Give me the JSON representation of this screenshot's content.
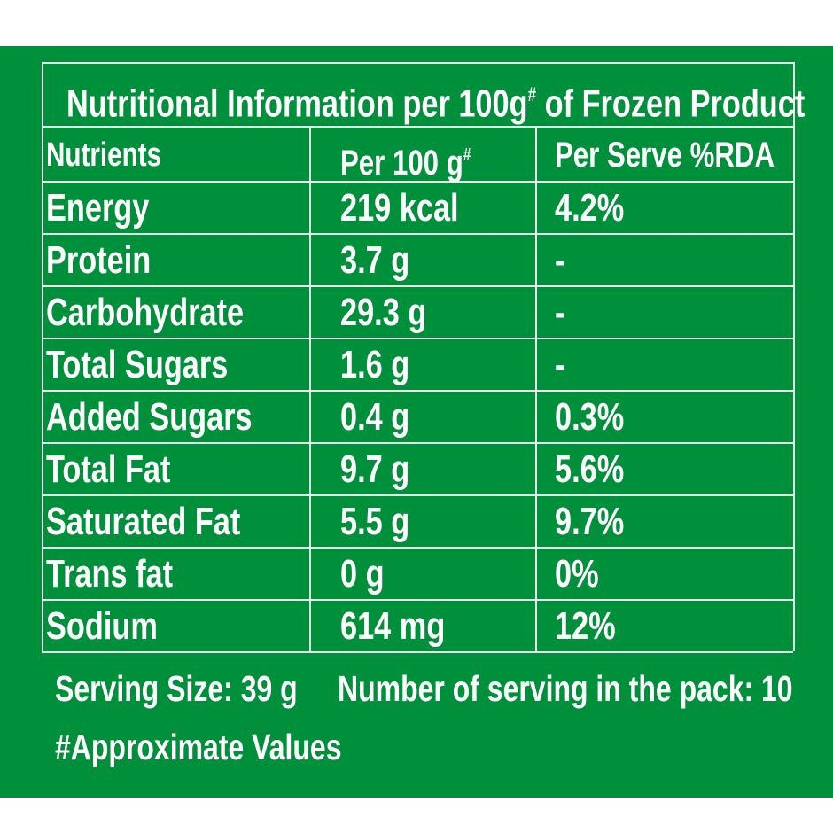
{
  "table": {
    "title": [
      "Nutritional Information per 100g",
      "#",
      " of Frozen Product"
    ],
    "header": [
      "Nutrients",
      [
        "Per 100 g",
        "#"
      ],
      "Per Serve %RDA"
    ],
    "rows": [
      [
        "Energy",
        "219 kcal",
        "4.2%"
      ],
      [
        "Protein",
        "3.7 g",
        "-"
      ],
      [
        "Carbohydrate",
        "29.3 g",
        "-"
      ],
      [
        "Total Sugars",
        "1.6 g",
        "-"
      ],
      [
        "Added Sugars",
        "0.4 g",
        "0.3%"
      ],
      [
        "Total Fat",
        "9.7 g",
        "5.6%"
      ],
      [
        "Saturated Fat",
        "5.5 g",
        "9.7%"
      ],
      [
        "Trans fat",
        "0 g",
        "0%"
      ],
      [
        "Sodium",
        "614 mg",
        "12%"
      ]
    ]
  },
  "footer": {
    "serving_size": "Serving Size: 39 g",
    "servings": "Number of serving in the pack: 10",
    "note": "#Approximate Values"
  }
}
